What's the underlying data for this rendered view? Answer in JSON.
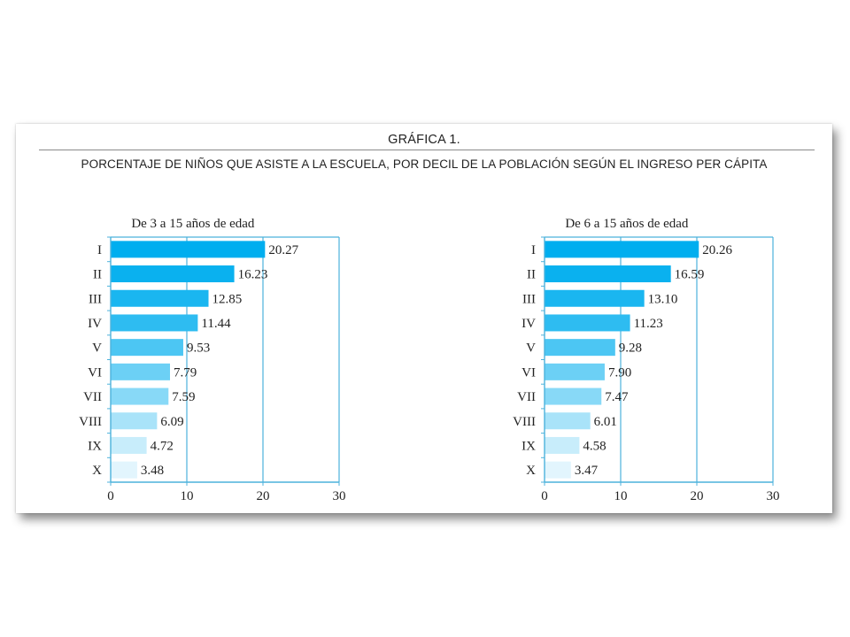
{
  "figure": {
    "label": "GRÁFICA 1.",
    "title": "PORCENTAJE DE NIÑOS QUE ASISTE A LA ESCUELA, POR DECIL DE LA POBLACIÓN SEGÚN EL INGRESO PER CÁPITA"
  },
  "chart_data": [
    {
      "type": "bar",
      "orientation": "horizontal",
      "title": "De 3 a 15 años de edad",
      "categories": [
        "I",
        "II",
        "III",
        "IV",
        "V",
        "VI",
        "VII",
        "VIII",
        "IX",
        "X"
      ],
      "values": [
        20.27,
        16.23,
        12.85,
        11.44,
        9.53,
        7.79,
        7.59,
        6.09,
        4.72,
        3.48
      ],
      "value_labels": [
        "20.27",
        "16.23",
        "12.85",
        "11.44",
        "9.53",
        "7.79",
        "7.59",
        "6.09",
        "4.72",
        "3.48"
      ],
      "xlim": [
        0,
        30
      ],
      "xticks": [
        "0",
        "10",
        "20",
        "30"
      ],
      "grid": "vertical",
      "colors": [
        "#00aeef",
        "#0ab1ef",
        "#1ab6f0",
        "#2ebcf1",
        "#4cc6f3",
        "#6cd0f5",
        "#88d9f7",
        "#a9e3f9",
        "#c8edfb",
        "#e2f5fd"
      ]
    },
    {
      "type": "bar",
      "orientation": "horizontal",
      "title": "De 6 a 15 años de edad",
      "categories": [
        "I",
        "II",
        "III",
        "IV",
        "V",
        "VI",
        "VII",
        "VIII",
        "IX",
        "X"
      ],
      "values": [
        20.26,
        16.59,
        13.1,
        11.23,
        9.28,
        7.9,
        7.47,
        6.01,
        4.58,
        3.47
      ],
      "value_labels": [
        "20.26",
        "16.59",
        "13.10",
        "11.23",
        "9.28",
        "7.90",
        "7.47",
        "6.01",
        "4.58",
        "3.47"
      ],
      "xlim": [
        0,
        30
      ],
      "xticks": [
        "0",
        "10",
        "20",
        "30"
      ],
      "grid": "vertical",
      "colors": [
        "#00aeef",
        "#0ab1ef",
        "#1ab6f0",
        "#2ebcf1",
        "#4cc6f3",
        "#6cd0f5",
        "#88d9f7",
        "#a9e3f9",
        "#c8edfb",
        "#e2f5fd"
      ]
    }
  ]
}
